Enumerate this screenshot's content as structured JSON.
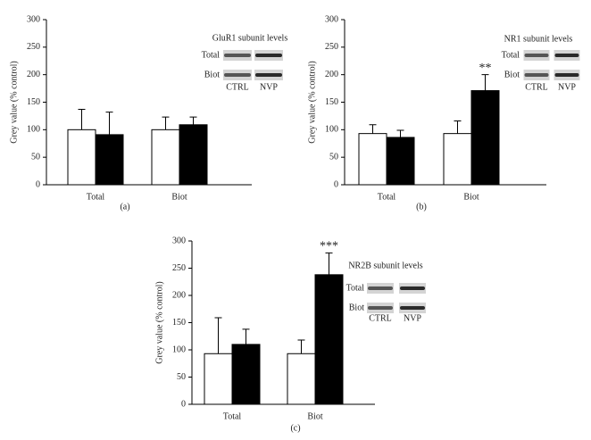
{
  "chart_data": [
    {
      "type": "bar",
      "panel_label": "(a)",
      "ylabel": "Grey value (% control)",
      "inset_title": "GluR1 subunit levels",
      "categories": [
        "Total",
        "Biot"
      ],
      "series": [
        {
          "name": "CTRL",
          "color": "#ffffff",
          "values": [
            100,
            100
          ],
          "errors": [
            37,
            23
          ]
        },
        {
          "name": "NVP",
          "color": "#000000",
          "values": [
            91,
            109
          ],
          "errors": [
            41,
            14
          ]
        }
      ],
      "ylim": [
        0,
        300
      ],
      "yticks": [
        0,
        50,
        100,
        150,
        200,
        250,
        300
      ]
    },
    {
      "type": "bar",
      "panel_label": "(b)",
      "ylabel": "Grey value (% control)",
      "inset_title": "NR1 subunit levels",
      "annotation": "**",
      "categories": [
        "Total",
        "Biot"
      ],
      "series": [
        {
          "name": "CTRL",
          "color": "#ffffff",
          "values": [
            93,
            93
          ],
          "errors": [
            16,
            23
          ]
        },
        {
          "name": "NVP",
          "color": "#000000",
          "values": [
            86,
            171
          ],
          "errors": [
            13,
            29
          ]
        }
      ],
      "ylim": [
        0,
        300
      ],
      "yticks": [
        0,
        50,
        100,
        150,
        200,
        250,
        300
      ]
    },
    {
      "type": "bar",
      "panel_label": "(c)",
      "ylabel": "Grey value (% control)",
      "inset_title": "NR2B subunit levels",
      "annotation": "***",
      "categories": [
        "Total",
        "Biot"
      ],
      "series": [
        {
          "name": "CTRL",
          "color": "#ffffff",
          "values": [
            93,
            93
          ],
          "errors": [
            66,
            25
          ]
        },
        {
          "name": "NVP",
          "color": "#000000",
          "values": [
            110,
            238
          ],
          "errors": [
            28,
            40
          ]
        }
      ],
      "ylim": [
        0,
        300
      ],
      "yticks": [
        0,
        50,
        100,
        150,
        200,
        250,
        300
      ]
    }
  ]
}
